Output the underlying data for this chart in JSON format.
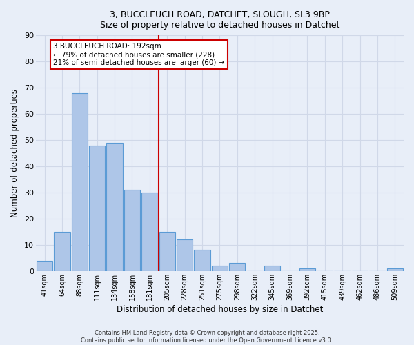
{
  "title_line1": "3, BUCCLEUCH ROAD, DATCHET, SLOUGH, SL3 9BP",
  "title_line2": "Size of property relative to detached houses in Datchet",
  "xlabel": "Distribution of detached houses by size in Datchet",
  "ylabel": "Number of detached properties",
  "bin_labels": [
    "41sqm",
    "64sqm",
    "88sqm",
    "111sqm",
    "134sqm",
    "158sqm",
    "181sqm",
    "205sqm",
    "228sqm",
    "251sqm",
    "275sqm",
    "298sqm",
    "322sqm",
    "345sqm",
    "369sqm",
    "392sqm",
    "415sqm",
    "439sqm",
    "462sqm",
    "486sqm",
    "509sqm"
  ],
  "bar_values": [
    4,
    15,
    68,
    48,
    49,
    31,
    30,
    15,
    12,
    8,
    2,
    3,
    0,
    2,
    0,
    1,
    0,
    0,
    0,
    0,
    1
  ],
  "bar_color": "#aec6e8",
  "bar_edge_color": "#5b9bd5",
  "background_color": "#e8eef8",
  "grid_color": "#d0d8e8",
  "vline_color": "#cc0000",
  "annotation_text": "3 BUCCLEUCH ROAD: 192sqm\n← 79% of detached houses are smaller (228)\n21% of semi-detached houses are larger (60) →",
  "annotation_box_color": "#ffffff",
  "annotation_box_edge": "#cc0000",
  "ylim": [
    0,
    90
  ],
  "yticks": [
    0,
    10,
    20,
    30,
    40,
    50,
    60,
    70,
    80,
    90
  ],
  "footnote1": "Contains HM Land Registry data © Crown copyright and database right 2025.",
  "footnote2": "Contains public sector information licensed under the Open Government Licence v3.0."
}
